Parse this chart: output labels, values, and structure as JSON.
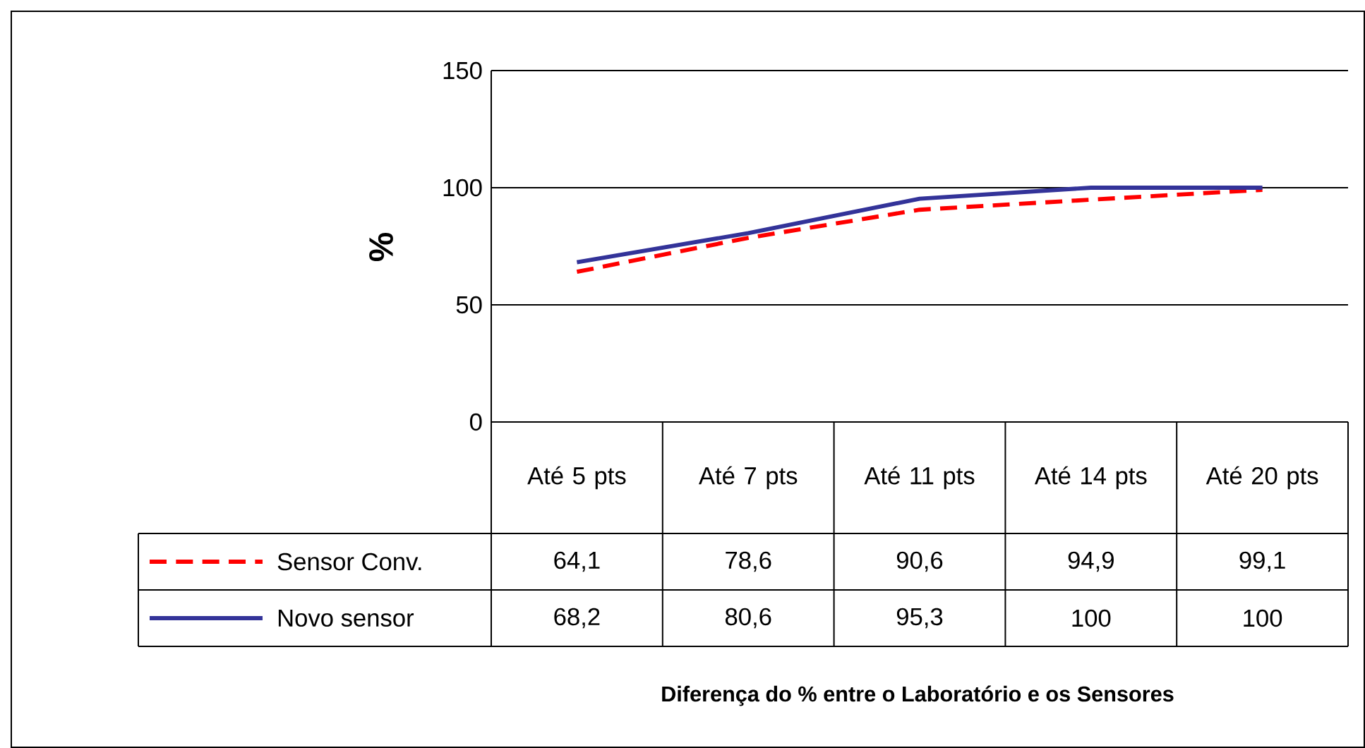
{
  "chart_data": {
    "type": "line",
    "annotations": [
      "Diferença do % entre o Laboratório e os Sensores"
    ],
    "ylabel": "%",
    "categories": [
      "Até 5 pts",
      "Até 7 pts",
      "Até 11 pts",
      "Até 14 pts",
      "Até 20 pts"
    ],
    "series": [
      {
        "name": "Sensor Conv.",
        "color": "#ff0000",
        "line_style": "dashed",
        "values": [
          64.1,
          78.6,
          90.6,
          94.9,
          99.1
        ],
        "value_labels": [
          "64,1",
          "78,6",
          "90,6",
          "94,9",
          "99,1"
        ]
      },
      {
        "name": "Novo sensor",
        "color": "#333399",
        "line_style": "solid",
        "values": [
          68.2,
          80.6,
          95.3,
          100,
          100
        ],
        "value_labels": [
          "68,2",
          "80,6",
          "95,3",
          "100",
          "100"
        ]
      }
    ],
    "ylim": [
      0,
      150
    ],
    "yticks": [
      0,
      50,
      100,
      150
    ],
    "grid": "y",
    "legend": "bottom",
    "marker": "none"
  }
}
